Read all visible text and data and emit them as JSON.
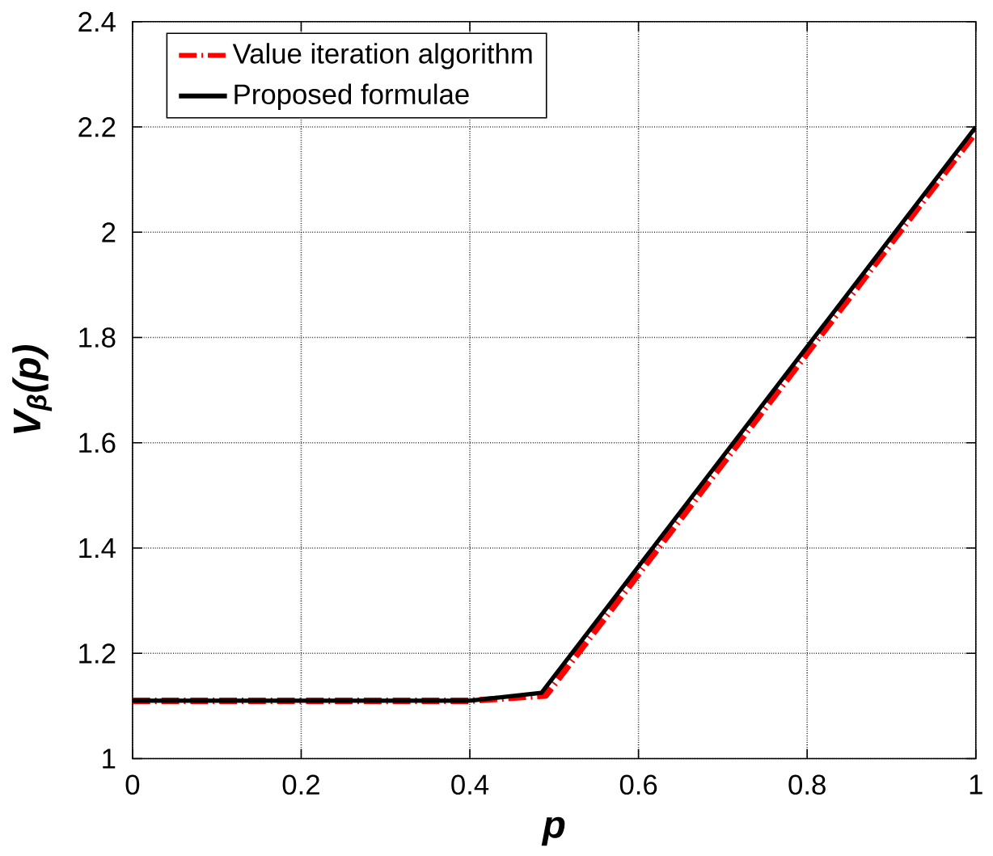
{
  "chart_data": {
    "type": "line",
    "xlabel": "p",
    "ylabel": "V$_{β}$(p)",
    "xlim": [
      0,
      1
    ],
    "ylim": [
      1,
      2.4
    ],
    "xticks": [
      0,
      0.2,
      0.4,
      0.6,
      0.8,
      1
    ],
    "yticks": [
      1,
      1.2,
      1.4,
      1.6,
      1.8,
      2,
      2.2,
      2.4
    ],
    "grid": true,
    "legend": "top left",
    "marker": "none",
    "series": [
      {
        "name": "Value iteration algorithm",
        "color": "#ff0000",
        "line_style": "dashed",
        "x": [
          0,
          0.4,
          0.49,
          1
        ],
        "values": [
          1.11,
          1.11,
          1.12,
          2.19
        ]
      },
      {
        "name": "Proposed formulae",
        "color": "#000000",
        "line_style": "solid",
        "x": [
          0,
          0.4,
          0.485,
          1
        ],
        "values": [
          1.11,
          1.11,
          1.125,
          2.2
        ]
      }
    ]
  }
}
